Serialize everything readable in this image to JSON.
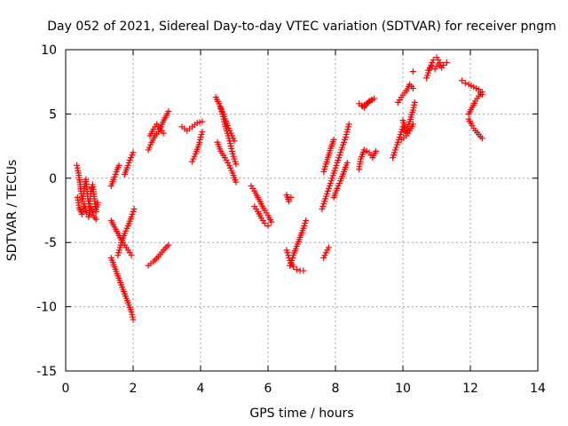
{
  "chart_data": {
    "type": "scatter",
    "title": "Day 052 of 2021, Sidereal Day-to-day VTEC variation (SDTVAR) for receiver pngm",
    "xlabel": "GPS time / hours",
    "ylabel": "SDTVAR / TECUs",
    "xlim": [
      0,
      14
    ],
    "ylim": [
      -15,
      10
    ],
    "xticks": [
      0,
      2,
      4,
      6,
      8,
      10,
      12,
      14
    ],
    "yticks": [
      -15,
      -10,
      -5,
      0,
      5,
      10
    ],
    "grid": true,
    "marker": "plus",
    "color": "#ff0000",
    "series": [
      {
        "values": [
          [
            0.33,
            1.0
          ],
          [
            0.38,
            0.4
          ],
          [
            0.42,
            -0.3
          ],
          [
            0.45,
            -1.0
          ],
          [
            0.5,
            -1.8
          ],
          [
            0.55,
            -0.8
          ],
          [
            0.6,
            -0.1
          ],
          [
            0.65,
            -1.4
          ],
          [
            0.7,
            -2.2
          ],
          [
            0.75,
            -1.0
          ],
          [
            0.8,
            -0.5
          ],
          [
            0.85,
            -1.6
          ],
          [
            0.9,
            -2.6
          ],
          [
            0.95,
            -1.9
          ]
        ]
      },
      {
        "values": [
          [
            0.35,
            -1.5
          ],
          [
            0.4,
            -2.3
          ],
          [
            0.48,
            -2.8
          ],
          [
            0.55,
            -2.0
          ],
          [
            0.62,
            -2.7
          ],
          [
            0.68,
            -3.0
          ],
          [
            0.75,
            -2.3
          ],
          [
            0.82,
            -2.9
          ],
          [
            0.9,
            -3.2
          ]
        ]
      },
      {
        "values": [
          [
            1.35,
            -0.6
          ],
          [
            1.42,
            -0.1
          ],
          [
            1.5,
            0.5
          ],
          [
            1.58,
            1.0
          ]
        ]
      },
      {
        "values": [
          [
            1.75,
            0.3
          ],
          [
            1.82,
            0.8
          ],
          [
            1.9,
            1.4
          ],
          [
            2.0,
            2.0
          ]
        ]
      },
      {
        "values": [
          [
            1.35,
            -3.3
          ],
          [
            1.45,
            -3.8
          ],
          [
            1.55,
            -4.3
          ],
          [
            1.65,
            -4.8
          ],
          [
            1.75,
            -5.2
          ],
          [
            1.85,
            -5.6
          ],
          [
            1.95,
            -6.0
          ]
        ]
      },
      {
        "values": [
          [
            1.55,
            -6.0
          ],
          [
            1.65,
            -5.0
          ],
          [
            1.75,
            -4.3
          ],
          [
            1.85,
            -3.7
          ],
          [
            1.95,
            -3.0
          ],
          [
            2.03,
            -2.4
          ]
        ]
      },
      {
        "values": [
          [
            1.35,
            -6.2
          ],
          [
            1.45,
            -6.9
          ],
          [
            1.55,
            -7.6
          ],
          [
            1.65,
            -8.3
          ],
          [
            1.75,
            -9.0
          ],
          [
            1.85,
            -9.7
          ],
          [
            1.95,
            -10.4
          ],
          [
            2.0,
            -11.0
          ]
        ]
      },
      {
        "values": [
          [
            2.45,
            -6.8
          ],
          [
            2.6,
            -6.5
          ],
          [
            2.75,
            -6.1
          ],
          [
            2.9,
            -5.6
          ],
          [
            3.05,
            -5.2
          ]
        ]
      },
      {
        "values": [
          [
            2.45,
            2.2
          ],
          [
            2.55,
            2.8
          ],
          [
            2.65,
            3.3
          ],
          [
            2.75,
            3.6
          ],
          [
            2.85,
            4.2
          ],
          [
            2.95,
            4.7
          ],
          [
            3.05,
            5.2
          ]
        ]
      },
      {
        "values": [
          [
            2.5,
            3.3
          ],
          [
            2.6,
            3.8
          ],
          [
            2.7,
            4.2
          ],
          [
            2.8,
            3.9
          ],
          [
            2.9,
            3.5
          ]
        ]
      },
      {
        "values": [
          [
            3.45,
            4.0
          ],
          [
            3.6,
            3.7
          ],
          [
            3.75,
            4.0
          ],
          [
            3.9,
            4.3
          ],
          [
            4.05,
            4.4
          ]
        ]
      },
      {
        "values": [
          [
            3.75,
            1.3
          ],
          [
            3.85,
            1.9
          ],
          [
            3.95,
            2.6
          ],
          [
            4.0,
            3.2
          ],
          [
            4.05,
            3.6
          ]
        ]
      },
      {
        "values": [
          [
            4.45,
            6.3
          ],
          [
            4.55,
            5.8
          ],
          [
            4.65,
            5.0
          ],
          [
            4.72,
            4.2
          ],
          [
            4.8,
            3.5
          ],
          [
            4.88,
            2.7
          ],
          [
            4.95,
            1.9
          ],
          [
            5.05,
            1.1
          ]
        ]
      },
      {
        "values": [
          [
            4.5,
            2.8
          ],
          [
            4.6,
            2.1
          ],
          [
            4.72,
            1.6
          ],
          [
            4.85,
            1.0
          ],
          [
            4.95,
            0.4
          ],
          [
            5.05,
            -0.3
          ]
        ]
      },
      {
        "values": [
          [
            4.6,
            5.5
          ],
          [
            4.7,
            4.8
          ],
          [
            4.8,
            4.1
          ],
          [
            4.9,
            3.5
          ],
          [
            5.0,
            2.9
          ]
        ]
      },
      {
        "values": [
          [
            5.5,
            -0.6
          ],
          [
            5.6,
            -1.0
          ],
          [
            5.7,
            -1.5
          ],
          [
            5.8,
            -2.0
          ],
          [
            5.9,
            -2.5
          ],
          [
            6.0,
            -2.9
          ],
          [
            6.1,
            -3.4
          ]
        ]
      },
      {
        "values": [
          [
            5.6,
            -2.2
          ],
          [
            5.7,
            -2.6
          ],
          [
            5.8,
            -3.1
          ],
          [
            5.9,
            -3.5
          ],
          [
            6.0,
            -3.7
          ]
        ]
      },
      {
        "values": [
          [
            6.55,
            -1.3
          ],
          [
            6.62,
            -1.8
          ],
          [
            6.68,
            -1.5
          ]
        ]
      },
      {
        "values": [
          [
            6.55,
            -5.6
          ],
          [
            6.65,
            -6.4
          ],
          [
            6.75,
            -6.9
          ],
          [
            6.85,
            -7.1
          ],
          [
            6.95,
            -7.2
          ],
          [
            7.05,
            -7.2
          ]
        ]
      },
      {
        "values": [
          [
            6.65,
            -6.8
          ],
          [
            6.75,
            -6.0
          ],
          [
            6.85,
            -5.3
          ],
          [
            6.95,
            -4.6
          ],
          [
            7.05,
            -3.9
          ],
          [
            7.12,
            -3.3
          ]
        ]
      },
      {
        "values": [
          [
            7.65,
            -6.2
          ],
          [
            7.72,
            -5.8
          ],
          [
            7.8,
            -5.4
          ]
        ]
      },
      {
        "values": [
          [
            7.6,
            -2.4
          ],
          [
            7.7,
            -1.6
          ],
          [
            7.8,
            -0.8
          ],
          [
            7.9,
            0.0
          ],
          [
            8.0,
            0.8
          ],
          [
            8.1,
            1.6
          ],
          [
            8.2,
            2.4
          ],
          [
            8.3,
            3.2
          ],
          [
            8.4,
            4.2
          ]
        ]
      },
      {
        "values": [
          [
            7.65,
            0.5
          ],
          [
            7.72,
            1.1
          ],
          [
            7.8,
            1.8
          ],
          [
            7.88,
            2.5
          ],
          [
            7.95,
            3.0
          ]
        ]
      },
      {
        "values": [
          [
            7.95,
            -1.5
          ],
          [
            8.05,
            -0.8
          ],
          [
            8.15,
            -0.2
          ],
          [
            8.25,
            0.5
          ],
          [
            8.35,
            1.2
          ]
        ]
      },
      {
        "values": [
          [
            8.7,
            0.7
          ],
          [
            8.75,
            1.5
          ],
          [
            8.85,
            2.2
          ],
          [
            9.0,
            2.0
          ],
          [
            9.1,
            1.6
          ],
          [
            9.2,
            2.1
          ]
        ]
      },
      {
        "values": [
          [
            8.7,
            5.8
          ],
          [
            8.85,
            5.5
          ],
          [
            9.0,
            6.0
          ],
          [
            9.15,
            6.2
          ],
          [
            8.8,
            5.6
          ]
        ]
      },
      {
        "values": [
          [
            9.7,
            1.6
          ],
          [
            9.8,
            2.4
          ],
          [
            9.9,
            3.2
          ],
          [
            10.0,
            4.0
          ],
          [
            10.1,
            3.5
          ]
        ]
      },
      {
        "values": [
          [
            10.0,
            4.5
          ],
          [
            10.1,
            3.6
          ],
          [
            10.2,
            4.4
          ],
          [
            10.3,
            5.3
          ],
          [
            10.35,
            5.9
          ]
        ]
      },
      {
        "values": [
          [
            9.85,
            5.9
          ],
          [
            9.95,
            6.3
          ],
          [
            10.1,
            6.8
          ],
          [
            10.2,
            7.3
          ],
          [
            10.3,
            7.0
          ]
        ]
      },
      {
        "values": [
          [
            9.95,
            3.0
          ],
          [
            10.1,
            3.3
          ],
          [
            10.2,
            3.7
          ],
          [
            10.3,
            4.2
          ]
        ]
      },
      {
        "values": [
          [
            10.3,
            8.3
          ]
        ]
      },
      {
        "values": [
          [
            10.7,
            7.8
          ],
          [
            10.8,
            8.6
          ],
          [
            10.9,
            9.2
          ],
          [
            11.0,
            9.4
          ],
          [
            11.1,
            9.0
          ],
          [
            11.2,
            8.8
          ],
          [
            11.3,
            9.0
          ]
        ]
      },
      {
        "values": [
          [
            10.75,
            8.4
          ],
          [
            10.85,
            8.7
          ],
          [
            10.95,
            8.5
          ],
          [
            11.05,
            8.9
          ],
          [
            11.15,
            8.6
          ]
        ]
      },
      {
        "values": [
          [
            11.75,
            7.6
          ],
          [
            11.85,
            7.4
          ],
          [
            11.95,
            7.3
          ],
          [
            12.1,
            7.1
          ],
          [
            12.25,
            6.9
          ],
          [
            12.35,
            6.5
          ]
        ]
      },
      {
        "values": [
          [
            11.95,
            4.6
          ],
          [
            12.05,
            4.1
          ],
          [
            12.15,
            3.7
          ],
          [
            12.25,
            3.4
          ],
          [
            12.35,
            3.1
          ]
        ]
      },
      {
        "values": [
          [
            11.95,
            5.0
          ],
          [
            12.05,
            5.5
          ],
          [
            12.15,
            6.0
          ],
          [
            12.25,
            6.4
          ],
          [
            12.35,
            6.7
          ]
        ]
      }
    ]
  }
}
